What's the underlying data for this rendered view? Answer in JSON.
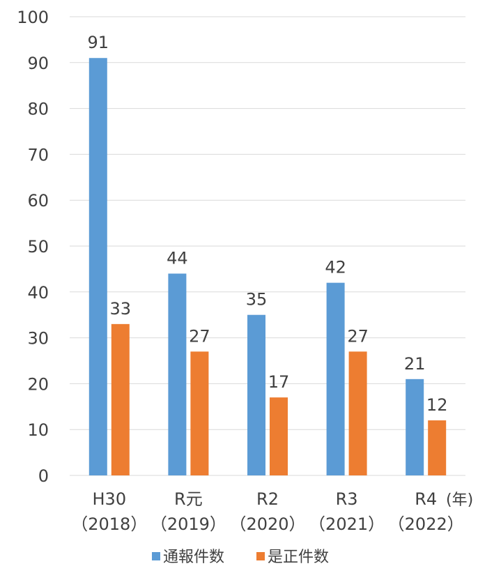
{
  "chart_data": {
    "type": "bar",
    "categories": [
      "H30",
      "R元",
      "R2",
      "R3",
      "R4"
    ],
    "category_sublabels": [
      "（2018）",
      "（2019）",
      "（2020）",
      "（2021）",
      "（2022）"
    ],
    "x_unit_label": "(年)",
    "y_unit_label": "",
    "series": [
      {
        "name": "通報件数",
        "color": "#5B9BD5",
        "values": [
          91,
          44,
          35,
          42,
          21
        ]
      },
      {
        "name": "是正件数",
        "color": "#ED7D31",
        "values": [
          33,
          27,
          17,
          27,
          12
        ]
      }
    ],
    "ylim": [
      0,
      100
    ],
    "yticks": [
      0,
      10,
      20,
      30,
      40,
      50,
      60,
      70,
      80,
      90,
      100
    ],
    "grid": true,
    "legend_position": "bottom",
    "data_labels": true,
    "gridline_color": "#D9D9D9"
  }
}
